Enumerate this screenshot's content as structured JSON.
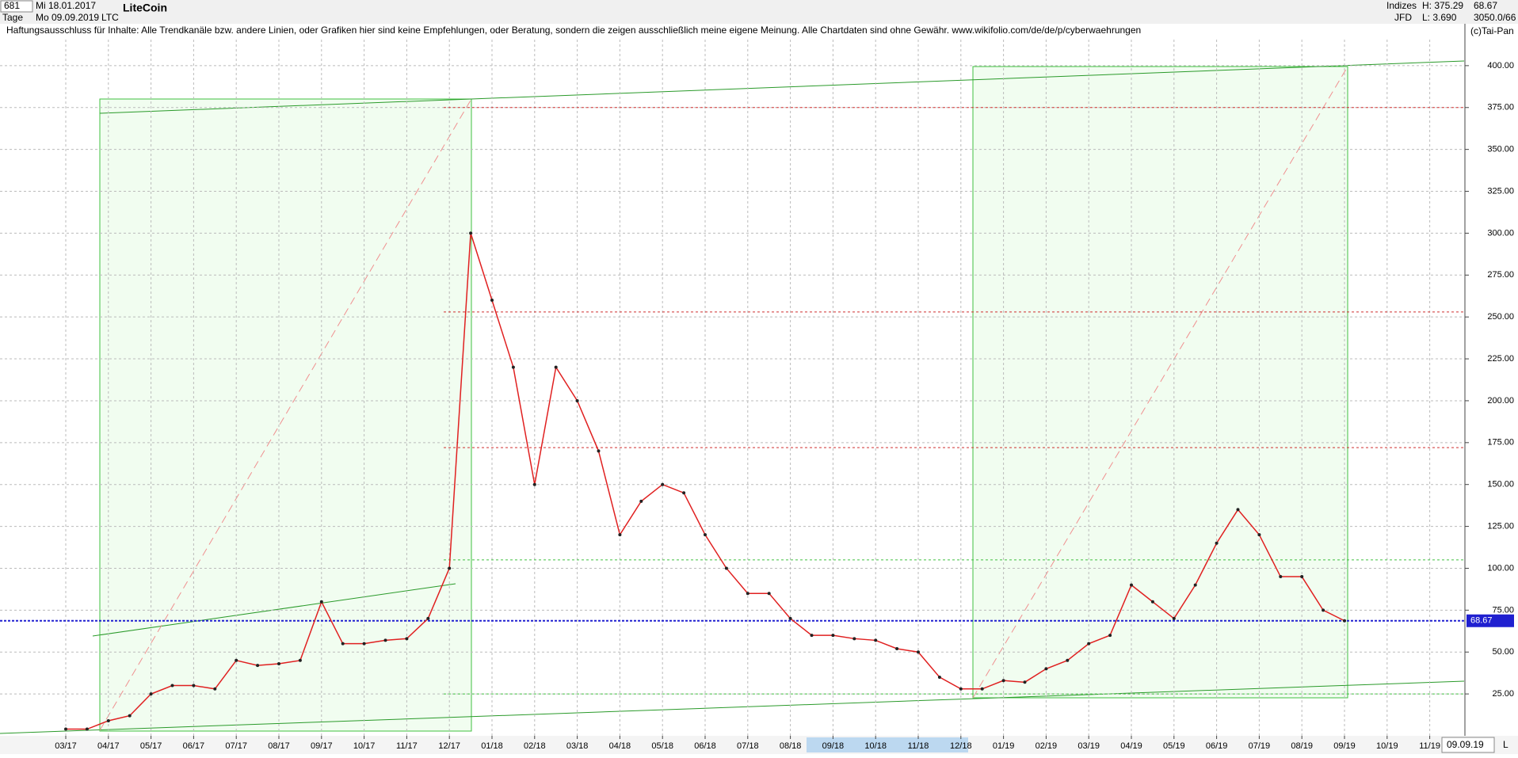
{
  "toolbar": {
    "count": "681",
    "start_date": "Mi 18.01.2017",
    "title": "LiteCoin",
    "period": "Tage",
    "end_date": "Mo 09.09.2019",
    "symbol": "LTC",
    "market": "Indizes",
    "source": "JFD",
    "high": "H: 375.29",
    "low": "L: 3.690",
    "last": "68.67",
    "info": "3050.0/66",
    "copyright": "(c)Tai-Pan",
    "date_box": "09.09.19",
    "scale_mode": "L"
  },
  "chart_data": {
    "type": "line",
    "title": "Haftungsausschluss für Inhalte: Alle Trendkanäle bzw. andere Linien, oder Grafiken hier sind keine Empfehlungen, oder Beratung, sondern die zeigen ausschließlich meine eigene Meinung. Alle Chartdaten sind ohne Gewähr.  www.wikifolio.com/de/de/p/cyberwaehrungen",
    "categories": [
      "03/17",
      null,
      "04/17",
      null,
      "05/17",
      null,
      "06/17",
      null,
      "07/17",
      null,
      "08/17",
      null,
      "09/17",
      null,
      "10/17",
      null,
      "11/17",
      null,
      "12/17",
      null,
      "01/18",
      null,
      "02/18",
      null,
      "03/18",
      null,
      "04/18",
      null,
      "05/18",
      null,
      "06/18",
      null,
      "07/18",
      null,
      "08/18",
      null,
      "09/18",
      null,
      "10/18",
      null,
      "11/18",
      null,
      "12/18",
      null,
      "01/19",
      null,
      "02/19",
      null,
      "03/19",
      null,
      "04/19",
      null,
      "05/19",
      null,
      "06/19",
      null,
      "07/19",
      null,
      "08/19",
      null,
      "09/19",
      null,
      "10/19",
      null,
      "11/19",
      null
    ],
    "series": [
      {
        "name": "LTC",
        "color": "#e02020",
        "values": [
          4,
          4,
          9,
          12,
          25,
          30,
          30,
          28,
          45,
          42,
          43,
          45,
          80,
          55,
          55,
          57,
          58,
          70,
          100,
          300,
          260,
          220,
          150,
          220,
          200,
          170,
          120,
          140,
          150,
          145,
          120,
          100,
          85,
          85,
          70,
          60,
          60,
          58,
          57,
          52,
          50,
          35,
          28,
          28,
          33,
          32,
          40,
          45,
          55,
          60,
          90,
          80,
          70,
          90,
          115,
          135,
          120,
          95,
          95,
          75,
          68.67,
          null,
          null,
          null,
          null,
          null
        ]
      }
    ],
    "ylim": [
      0,
      425
    ],
    "yticks": [
      {
        "value": 25,
        "label": "25.00"
      },
      {
        "value": 50,
        "label": "50.00"
      },
      {
        "value": 75,
        "label": "75.00"
      },
      {
        "value": 100,
        "label": "100.00"
      },
      {
        "value": 125,
        "label": "125.00"
      },
      {
        "value": 150,
        "label": "150.00"
      },
      {
        "value": 175,
        "label": "175.00"
      },
      {
        "value": 200,
        "label": "200.00"
      },
      {
        "value": 225,
        "label": "225.00"
      },
      {
        "value": 250,
        "label": "250.00"
      },
      {
        "value": 275,
        "label": "275.00"
      },
      {
        "value": 300,
        "label": "300.00"
      },
      {
        "value": 325,
        "label": "325.00"
      },
      {
        "value": 350,
        "label": "350.00"
      },
      {
        "value": 375,
        "label": "375.00"
      },
      {
        "value": 400,
        "label": "400.00"
      }
    ],
    "last_price": {
      "value": 68.67,
      "color": "#2020d0"
    },
    "reference_lines": [
      {
        "value": 375,
        "color": "#d03030"
      },
      {
        "value": 253,
        "color": "#d03030"
      },
      {
        "value": 172,
        "color": "#d03030"
      },
      {
        "value": 105,
        "color": "#40c040"
      },
      {
        "value": 25,
        "color": "#40c040"
      }
    ],
    "grid": true
  }
}
